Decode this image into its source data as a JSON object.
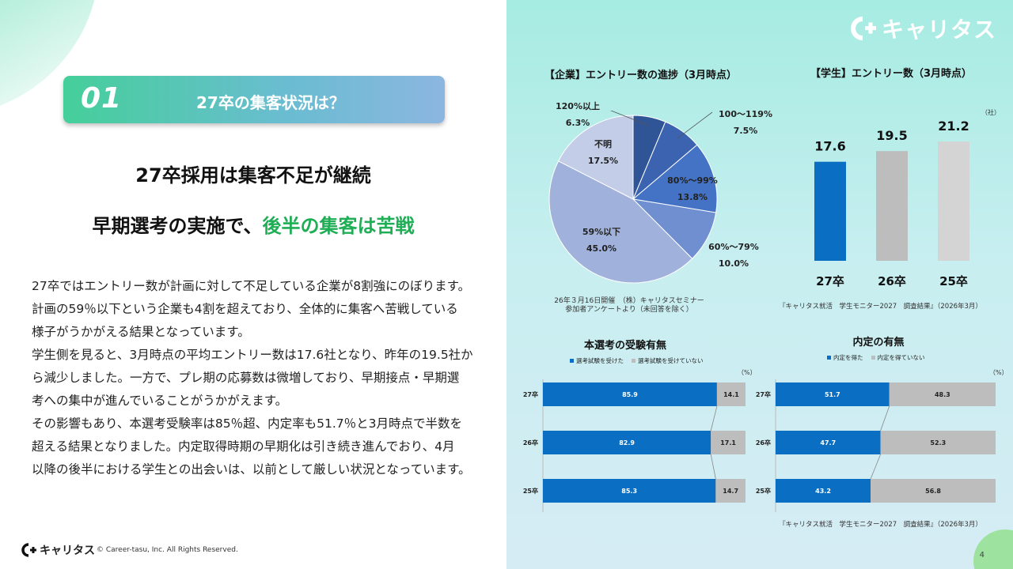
{
  "brand": {
    "name": "キャリタス",
    "copyright": "© Career-tasu, Inc. All Rights Reserved."
  },
  "page_number": "4",
  "section": {
    "number": "01",
    "title": "27卒の集客状況は？"
  },
  "headline1": "27卒採用は集客不足が継続",
  "headline2_prefix": "早期選考の実施で、",
  "headline2_emph": "後半の集客は苦戦",
  "body_lines": [
    "27卒ではエントリー数が計画に対して不足している企業が8割強にのぼります。",
    "計画の59％以下という企業も4割を超えており、全体的に集客へ苦戦している",
    "様子がうかがえる結果となっています。",
    "学生側を見ると、3月時点の平均エントリー数は17.6社となり、昨年の19.5社か",
    "ら減少しました。一方で、プレ期の応募数は微増しており、早期接点・早期選",
    "考への集中が進んでいることがうかがえます。",
    "その影響もあり、本選考受験率は85％超、内定率も51.7％と3月時点で半数を",
    "超える結果となりました。内定取得時期の早期化は引き続き進んでおり、4月",
    "以降の後半における学生との出会いは、以前として厳しい状況となっています。"
  ],
  "colors": {
    "accent_green": "#1fae56",
    "bar_blue": "#0a6fc2",
    "bar_gray": "#bdbdbd"
  },
  "chart_data": [
    {
      "type": "pie",
      "title": "【企業】エントリー数の進捗（3月時点）",
      "categories": [
        "120%以上",
        "100〜119%",
        "80%〜99%",
        "60%〜79%",
        "59%以下",
        "不明"
      ],
      "values": [
        6.3,
        7.5,
        13.8,
        10.0,
        45.0,
        17.5
      ],
      "value_labels": [
        "6.3%",
        "7.5%",
        "13.8%",
        "10.0%",
        "45.0%",
        "17.5%"
      ],
      "colors": [
        "#2f5597",
        "#3b63b0",
        "#4472c4",
        "#6f8fd0",
        "#a0b2dc",
        "#c3cde8"
      ],
      "note_lines": [
        "26年３月16日開催　（株）キャリタスセミナー",
        "参加者アンケートより（未回答を除く）"
      ]
    },
    {
      "type": "bar",
      "title": "【学生】エントリー数（3月時点）",
      "unit": "（社）",
      "categories": [
        "27卒",
        "26卒",
        "25卒"
      ],
      "values": [
        17.6,
        19.5,
        21.2
      ],
      "value_labels": [
        "17.6",
        "19.5",
        "21.2"
      ],
      "colors": [
        "#0a6fc2",
        "#bdbdbd",
        "#d4d4d4"
      ],
      "note": "『キャリタス就活　学生モニター2027　調査結果』（2026年3月）"
    },
    {
      "type": "bar",
      "orientation": "horizontal-stacked",
      "title": "本選考の受験有無",
      "unit": "（%）",
      "categories": [
        "27卒",
        "26卒",
        "25卒"
      ],
      "series": [
        {
          "name": "選考試験を受けた",
          "values": [
            85.9,
            82.9,
            85.3
          ],
          "labels": [
            "85.9",
            "82.9",
            "85.3"
          ]
        },
        {
          "name": "選考試験を受けていない",
          "values": [
            14.1,
            17.1,
            14.7
          ],
          "labels": [
            "14.1",
            "17.1",
            "14.7"
          ]
        }
      ]
    },
    {
      "type": "bar",
      "orientation": "horizontal-stacked",
      "title": "内定の有無",
      "unit": "（%）",
      "categories": [
        "27卒",
        "26卒",
        "25卒"
      ],
      "series": [
        {
          "name": "内定を得た",
          "values": [
            51.7,
            47.7,
            43.2
          ],
          "labels": [
            "51.7",
            "47.7",
            "43.2"
          ]
        },
        {
          "name": "内定を得ていない",
          "values": [
            48.3,
            52.3,
            56.8
          ],
          "labels": [
            "48.3",
            "52.3",
            "56.8"
          ]
        }
      ],
      "note": "『キャリタス就活　学生モニター2027　調査結果』（2026年3月）"
    }
  ]
}
